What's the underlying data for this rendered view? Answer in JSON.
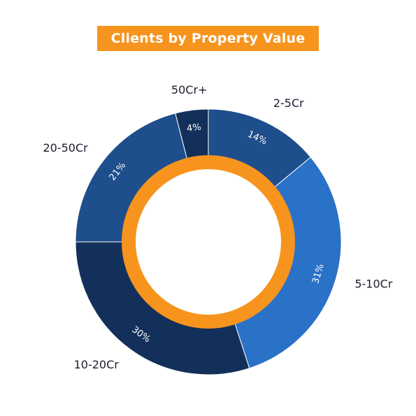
{
  "colors": {
    "title_bg": "#F7941D",
    "inner_ring": "#F7941D",
    "segment_edge": "#ffffff"
  },
  "chart_data": {
    "type": "pie",
    "variant": "donut",
    "title": "Clients by Property Value",
    "categories": [
      "2-5Cr",
      "5-10Cr",
      "10-20Cr",
      "20-50Cr",
      "50Cr+"
    ],
    "values": [
      14,
      31,
      30,
      21,
      4
    ],
    "value_labels": [
      "14%",
      "31%",
      "30%",
      "21%",
      "4%"
    ],
    "colors": [
      "#1F4E8C",
      "#2A71C8",
      "#13305A",
      "#1F4E8C",
      "#13305A"
    ],
    "start_angle_deg": 0,
    "direction": "clockwise",
    "legend": "none",
    "category_labels": "outside"
  }
}
